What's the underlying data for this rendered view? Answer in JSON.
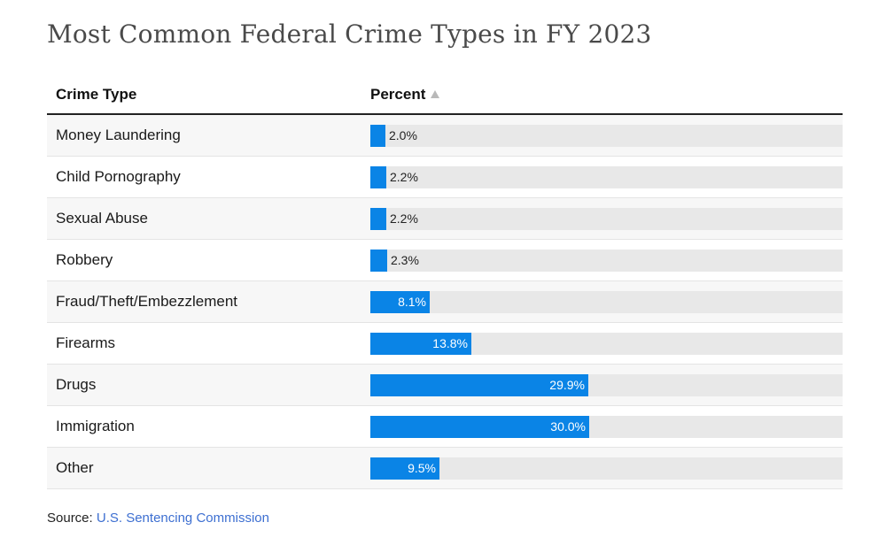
{
  "title": "Most Common Federal Crime Types in FY 2023",
  "table": {
    "col_type": "Crime Type",
    "col_percent": "Percent"
  },
  "colors": {
    "bar": "#0a84e6",
    "track": "#e8e8e8"
  },
  "chart_data": {
    "type": "table",
    "title": "Most Common Federal Crime Types in FY 2023",
    "columns": [
      "Crime Type",
      "Percent"
    ],
    "sort": {
      "column": "Percent",
      "direction": "ascending"
    },
    "max_value": 30.0,
    "rows": [
      {
        "category": "Money Laundering",
        "value": 2.0,
        "label": "2.0%"
      },
      {
        "category": "Child Pornography",
        "value": 2.2,
        "label": "2.2%"
      },
      {
        "category": "Sexual Abuse",
        "value": 2.2,
        "label": "2.2%"
      },
      {
        "category": "Robbery",
        "value": 2.3,
        "label": "2.3%"
      },
      {
        "category": "Fraud/Theft/Embezzlement",
        "value": 8.1,
        "label": "8.1%"
      },
      {
        "category": "Firearms",
        "value": 13.8,
        "label": "13.8%"
      },
      {
        "category": "Drugs",
        "value": 29.9,
        "label": "29.9%"
      },
      {
        "category": "Immigration",
        "value": 30.0,
        "label": "30.0%"
      },
      {
        "category": "Other",
        "value": 9.5,
        "label": "9.5%"
      }
    ]
  },
  "source": {
    "prefix": "Source:",
    "link_text": "U.S. Sentencing Commission"
  }
}
